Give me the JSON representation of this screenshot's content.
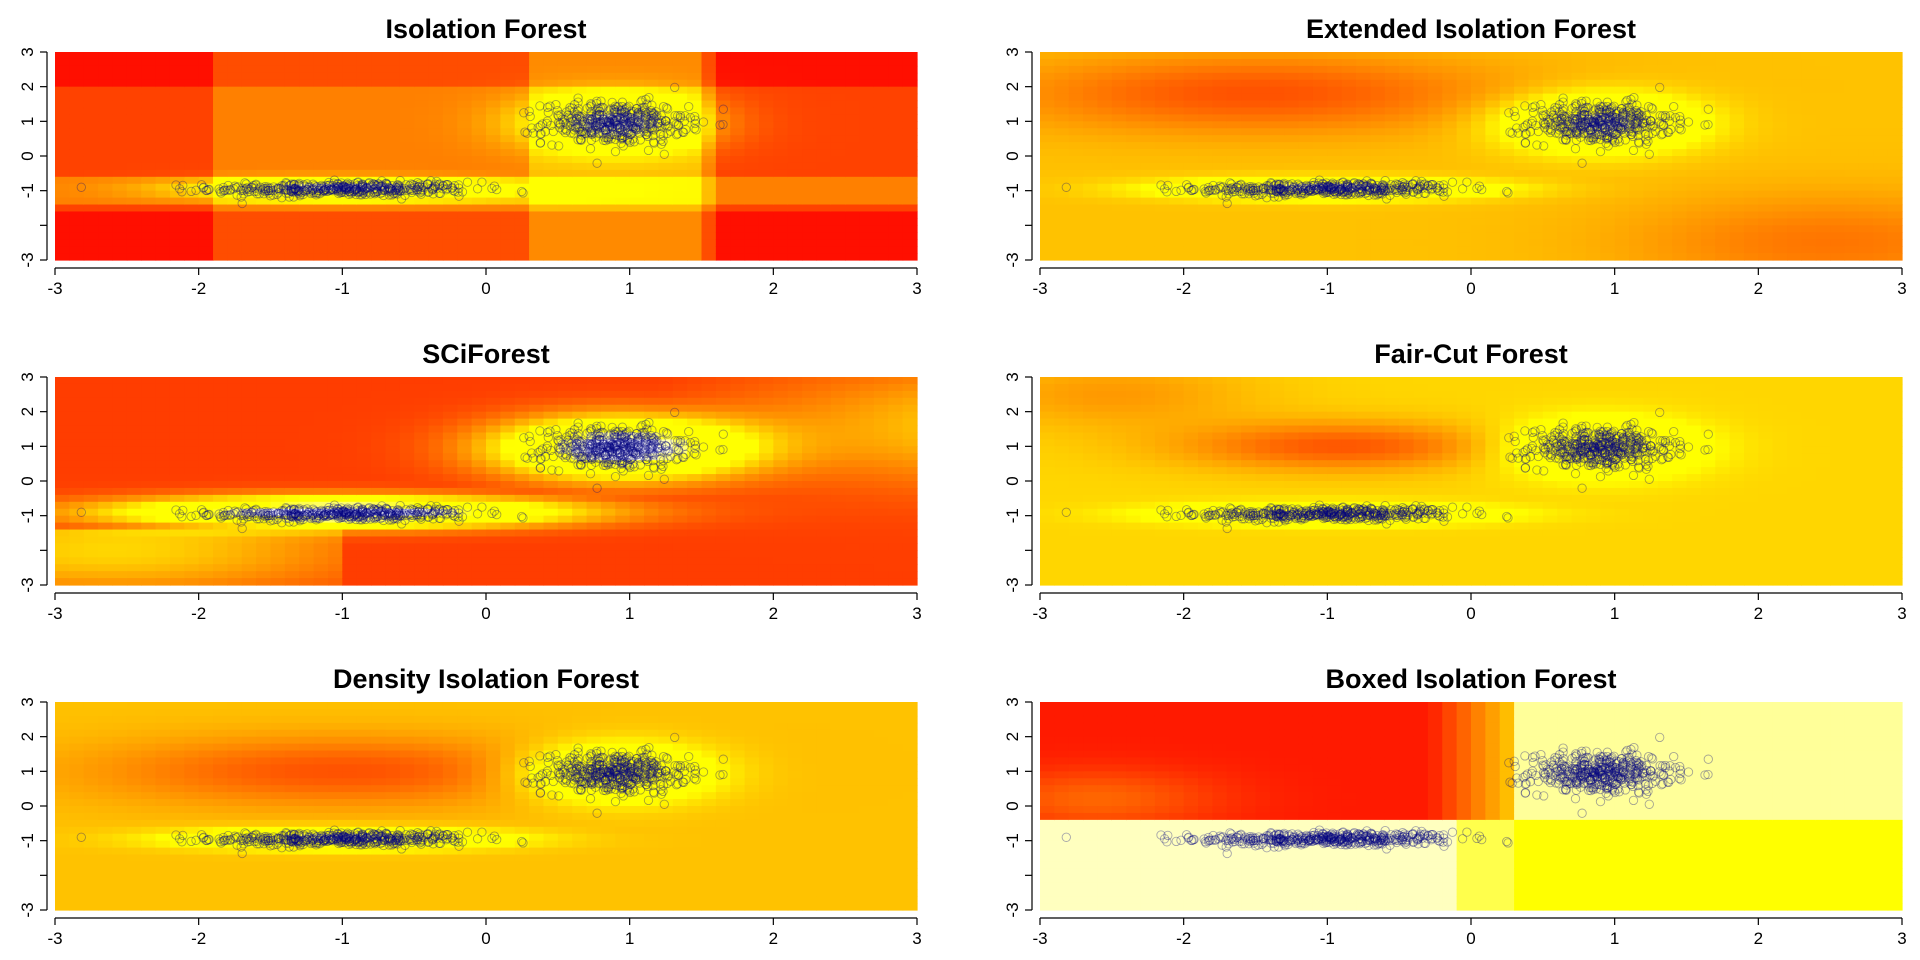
{
  "chart_data": [
    {
      "type": "heatmap",
      "title": "Isolation Forest",
      "xlim": [
        -3,
        3
      ],
      "ylim": [
        -3,
        3
      ],
      "xticks": [
        "-3",
        "-2",
        "-1",
        "0",
        "1",
        "2",
        "3"
      ],
      "yticks": [
        "-3",
        "-1",
        "0",
        "1",
        "2",
        "3"
      ],
      "color_scale": [
        "#ff0000",
        "#ff8800",
        "#ffff00",
        "#ffffff"
      ],
      "clusters": [
        {
          "center": [
            -1.0,
            -0.95
          ],
          "spread": [
            0.45,
            0.1
          ],
          "n": 450
        },
        {
          "center": [
            0.9,
            0.95
          ],
          "spread": [
            0.25,
            0.3
          ],
          "n": 450
        }
      ],
      "point_color": "#000080",
      "grid": false
    },
    {
      "type": "heatmap",
      "title": "Extended Isolation Forest",
      "xlim": [
        -3,
        3
      ],
      "ylim": [
        -3,
        3
      ],
      "xticks": [
        "-3",
        "-2",
        "-1",
        "0",
        "1",
        "2",
        "3"
      ],
      "yticks": [
        "-3",
        "-1",
        "0",
        "1",
        "2",
        "3"
      ],
      "color_scale": [
        "#ff0000",
        "#ff8800",
        "#ffff00",
        "#ffffff"
      ],
      "clusters": [
        {
          "center": [
            -1.0,
            -0.95
          ],
          "spread": [
            0.45,
            0.1
          ],
          "n": 450
        },
        {
          "center": [
            0.9,
            0.95
          ],
          "spread": [
            0.25,
            0.3
          ],
          "n": 450
        }
      ],
      "point_color": "#000080",
      "grid": false
    },
    {
      "type": "heatmap",
      "title": "SCiForest",
      "xlim": [
        -3,
        3
      ],
      "ylim": [
        -3,
        3
      ],
      "xticks": [
        "-3",
        "-2",
        "-1",
        "0",
        "1",
        "2",
        "3"
      ],
      "yticks": [
        "-3",
        "-1",
        "0",
        "1",
        "2",
        "3"
      ],
      "color_scale": [
        "#ff0000",
        "#ff8800",
        "#ffff00",
        "#ffffff"
      ],
      "clusters": [
        {
          "center": [
            -1.0,
            -0.95
          ],
          "spread": [
            0.45,
            0.1
          ],
          "n": 450
        },
        {
          "center": [
            0.9,
            0.95
          ],
          "spread": [
            0.25,
            0.3
          ],
          "n": 450
        }
      ],
      "point_color": "#000080",
      "grid": false
    },
    {
      "type": "heatmap",
      "title": "Fair-Cut Forest",
      "xlim": [
        -3,
        3
      ],
      "ylim": [
        -3,
        3
      ],
      "xticks": [
        "-3",
        "-2",
        "-1",
        "0",
        "1",
        "2",
        "3"
      ],
      "yticks": [
        "-3",
        "-1",
        "0",
        "1",
        "2",
        "3"
      ],
      "color_scale": [
        "#ff0000",
        "#ff8800",
        "#ffff00",
        "#ffffff"
      ],
      "clusters": [
        {
          "center": [
            -1.0,
            -0.95
          ],
          "spread": [
            0.45,
            0.1
          ],
          "n": 450
        },
        {
          "center": [
            0.9,
            0.95
          ],
          "spread": [
            0.25,
            0.3
          ],
          "n": 450
        }
      ],
      "point_color": "#000080",
      "grid": false
    },
    {
      "type": "heatmap",
      "title": "Density Isolation Forest",
      "xlim": [
        -3,
        3
      ],
      "ylim": [
        -3,
        3
      ],
      "xticks": [
        "-3",
        "-2",
        "-1",
        "0",
        "1",
        "2",
        "3"
      ],
      "yticks": [
        "-3",
        "-1",
        "0",
        "1",
        "2",
        "3"
      ],
      "color_scale": [
        "#ff0000",
        "#ff8800",
        "#ffff00",
        "#ffffff"
      ],
      "clusters": [
        {
          "center": [
            -1.0,
            -0.95
          ],
          "spread": [
            0.45,
            0.1
          ],
          "n": 450
        },
        {
          "center": [
            0.9,
            0.95
          ],
          "spread": [
            0.25,
            0.3
          ],
          "n": 450
        }
      ],
      "point_color": "#000080",
      "grid": false
    },
    {
      "type": "heatmap",
      "title": "Boxed Isolation Forest",
      "xlim": [
        -3,
        3
      ],
      "ylim": [
        -3,
        3
      ],
      "xticks": [
        "-3",
        "-2",
        "-1",
        "0",
        "1",
        "2",
        "3"
      ],
      "yticks": [
        "-3",
        "-1",
        "0",
        "1",
        "2",
        "3"
      ],
      "color_scale": [
        "#ff0000",
        "#ff8800",
        "#ffff00",
        "#ffffff"
      ],
      "clusters": [
        {
          "center": [
            -1.0,
            -0.95
          ],
          "spread": [
            0.45,
            0.1
          ],
          "n": 450
        },
        {
          "center": [
            0.9,
            0.95
          ],
          "spread": [
            0.25,
            0.3
          ],
          "n": 450
        }
      ],
      "point_color": "#000080",
      "grid": false
    }
  ]
}
